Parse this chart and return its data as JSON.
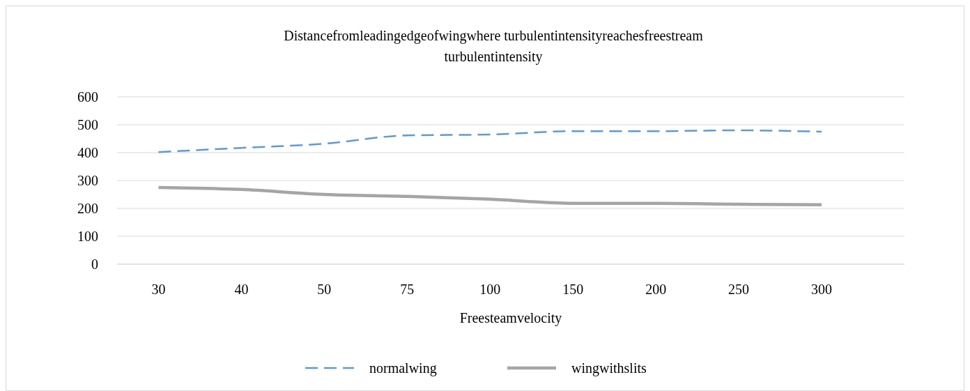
{
  "chart_data": {
    "type": "line",
    "title": "Distancefromleadingedgeofwingwhere turbulentintensityreachesfreestream turbulentintensity",
    "xlabel": "Freesteamvelocity",
    "categories": [
      "30",
      "40",
      "50",
      "75",
      "100",
      "150",
      "200",
      "250",
      "300"
    ],
    "series": [
      {
        "name": "normalwing",
        "color": "#5b9bd5",
        "line_style": "dashed",
        "values": [
          402,
          417,
          432,
          462,
          465,
          477,
          477,
          480,
          475
        ]
      },
      {
        "name": "wingwithslits",
        "color": "#a5a5a5",
        "line_style": "solid",
        "values": [
          275,
          268,
          250,
          243,
          233,
          218,
          218,
          215,
          213
        ]
      }
    ],
    "ylim": [
      0,
      600
    ],
    "yticks": [
      0,
      100,
      200,
      300,
      400,
      500,
      600
    ],
    "grid": "y",
    "legend": "bottom"
  }
}
